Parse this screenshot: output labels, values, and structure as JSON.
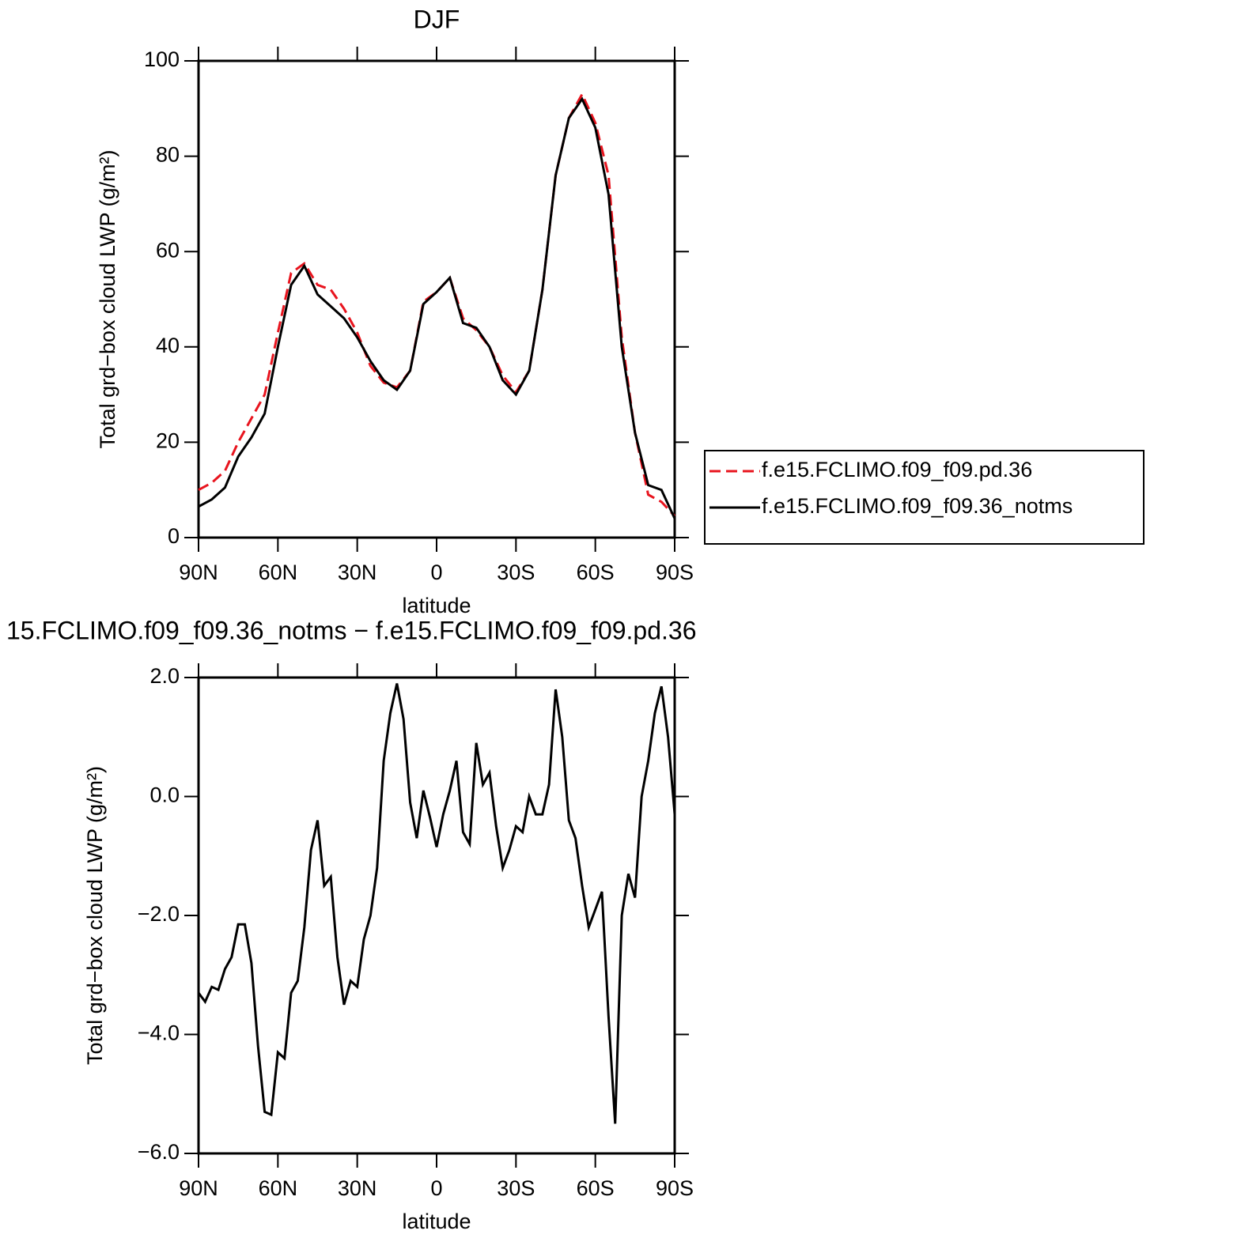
{
  "chart_data": [
    {
      "type": "line",
      "title": "DJF",
      "xlabel": "latitude",
      "ylabel": "Total grd−box cloud LWP (g/m²)",
      "x": [
        90,
        85,
        80,
        75,
        70,
        65,
        60,
        55,
        50,
        45,
        40,
        35,
        30,
        25,
        20,
        15,
        10,
        5,
        0,
        -5,
        -10,
        -15,
        -20,
        -25,
        -30,
        -35,
        -40,
        -45,
        -50,
        -55,
        -60,
        -65,
        -70,
        -75,
        -80,
        -85,
        -90
      ],
      "xlim": [
        90,
        -90
      ],
      "xticks": [
        {
          "value": 90,
          "label": "90N"
        },
        {
          "value": 60,
          "label": "60N"
        },
        {
          "value": 30,
          "label": "30N"
        },
        0,
        {
          "value": -30,
          "label": "30S"
        },
        {
          "value": -60,
          "label": "60S"
        },
        {
          "value": -90,
          "label": "90S"
        }
      ],
      "ylim": [
        0,
        100
      ],
      "yticks": [
        0,
        20,
        40,
        60,
        80,
        100
      ],
      "legend": "right",
      "series": [
        {
          "name": "f.e15.FCLIMO.f09_f09.pd.36",
          "color": "#e8141e",
          "line_style": "dashed",
          "values": [
            10,
            11.5,
            14,
            20,
            25,
            30,
            43,
            55.5,
            57.5,
            53,
            52,
            48,
            43,
            36,
            32.5,
            31.5,
            35,
            49.5,
            51.5,
            54.5,
            46,
            43.5,
            40,
            34,
            30.5,
            35,
            52,
            76,
            88,
            93,
            87,
            76,
            42,
            22,
            9,
            7.5,
            4.5
          ]
        },
        {
          "name": "f.e15.FCLIMO.f09_f09.36_notms",
          "color": "#000000",
          "line_style": "solid",
          "values": [
            6.5,
            8,
            10.5,
            17,
            21,
            26,
            40,
            53,
            57,
            51,
            48.5,
            46,
            42,
            37,
            33,
            31,
            35,
            49,
            51.5,
            54.5,
            45,
            44,
            40,
            33,
            30,
            35,
            52,
            76,
            88,
            92,
            86,
            72,
            40,
            22,
            11,
            10,
            4
          ]
        }
      ]
    },
    {
      "type": "line",
      "title": "15.FCLIMO.f09_f09.36_notms − f.e15.FCLIMO.f09_f09.pd.36",
      "xlabel": "latitude",
      "ylabel": "Total grd−box cloud LWP (g/m²)",
      "x": [
        90,
        87.5,
        85,
        82.5,
        80,
        77.5,
        75,
        72.5,
        70,
        67.5,
        65,
        62.5,
        60,
        57.5,
        55,
        52.5,
        50,
        47.5,
        45,
        42.5,
        40,
        37.5,
        35,
        32.5,
        30,
        27.5,
        25,
        22.5,
        20,
        17.5,
        15,
        12.5,
        10,
        7.5,
        5,
        2.5,
        0,
        -2.5,
        -5,
        -7.5,
        -10,
        -12.5,
        -15,
        -17.5,
        -20,
        -22.5,
        -25,
        -27.5,
        -30,
        -32.5,
        -35,
        -37.5,
        -40,
        -42.5,
        -45,
        -47.5,
        -50,
        -52.5,
        -55,
        -57.5,
        -60,
        -62.5,
        -65,
        -67.5,
        -70,
        -72.5,
        -75,
        -77.5,
        -80,
        -82.5,
        -85,
        -87.5,
        -90
      ],
      "xlim": [
        90,
        -90
      ],
      "xticks": [
        {
          "value": 90,
          "label": "90N"
        },
        {
          "value": 60,
          "label": "60N"
        },
        {
          "value": 30,
          "label": "30N"
        },
        0,
        {
          "value": -30,
          "label": "30S"
        },
        {
          "value": -60,
          "label": "60S"
        },
        {
          "value": -90,
          "label": "90S"
        }
      ],
      "ylim": [
        -6,
        2
      ],
      "yticks": [
        {
          "value": -6,
          "label": "−6.0"
        },
        {
          "value": -4,
          "label": "−4.0"
        },
        {
          "value": -2,
          "label": "−2.0"
        },
        {
          "value": 0,
          "label": "0.0"
        },
        {
          "value": 2,
          "label": "2.0"
        }
      ],
      "series": [
        {
          "color": "#000000",
          "line_style": "solid",
          "values": [
            -3.3,
            -3.45,
            -3.2,
            -3.25,
            -2.9,
            -2.7,
            -2.15,
            -2.15,
            -2.8,
            -4.2,
            -5.3,
            -5.35,
            -4.3,
            -4.4,
            -3.3,
            -3.1,
            -2.2,
            -0.9,
            -0.4,
            -1.5,
            -1.35,
            -2.7,
            -3.5,
            -3.1,
            -3.2,
            -2.4,
            -2.0,
            -1.2,
            0.6,
            1.4,
            1.9,
            1.3,
            -0.1,
            -0.7,
            0.1,
            -0.35,
            -0.85,
            -0.3,
            0.1,
            0.6,
            -0.6,
            -0.8,
            0.9,
            0.2,
            0.4,
            -0.5,
            -1.2,
            -0.9,
            -0.5,
            -0.6,
            0.0,
            -0.3,
            -0.3,
            0.2,
            1.8,
            1.0,
            -0.4,
            -0.7,
            -1.5,
            -2.2,
            -1.9,
            -1.6,
            -3.7,
            -5.5,
            -2.0,
            -1.3,
            -1.7,
            0.0,
            0.6,
            1.4,
            1.85,
            1.0,
            -0.3
          ]
        }
      ]
    }
  ]
}
